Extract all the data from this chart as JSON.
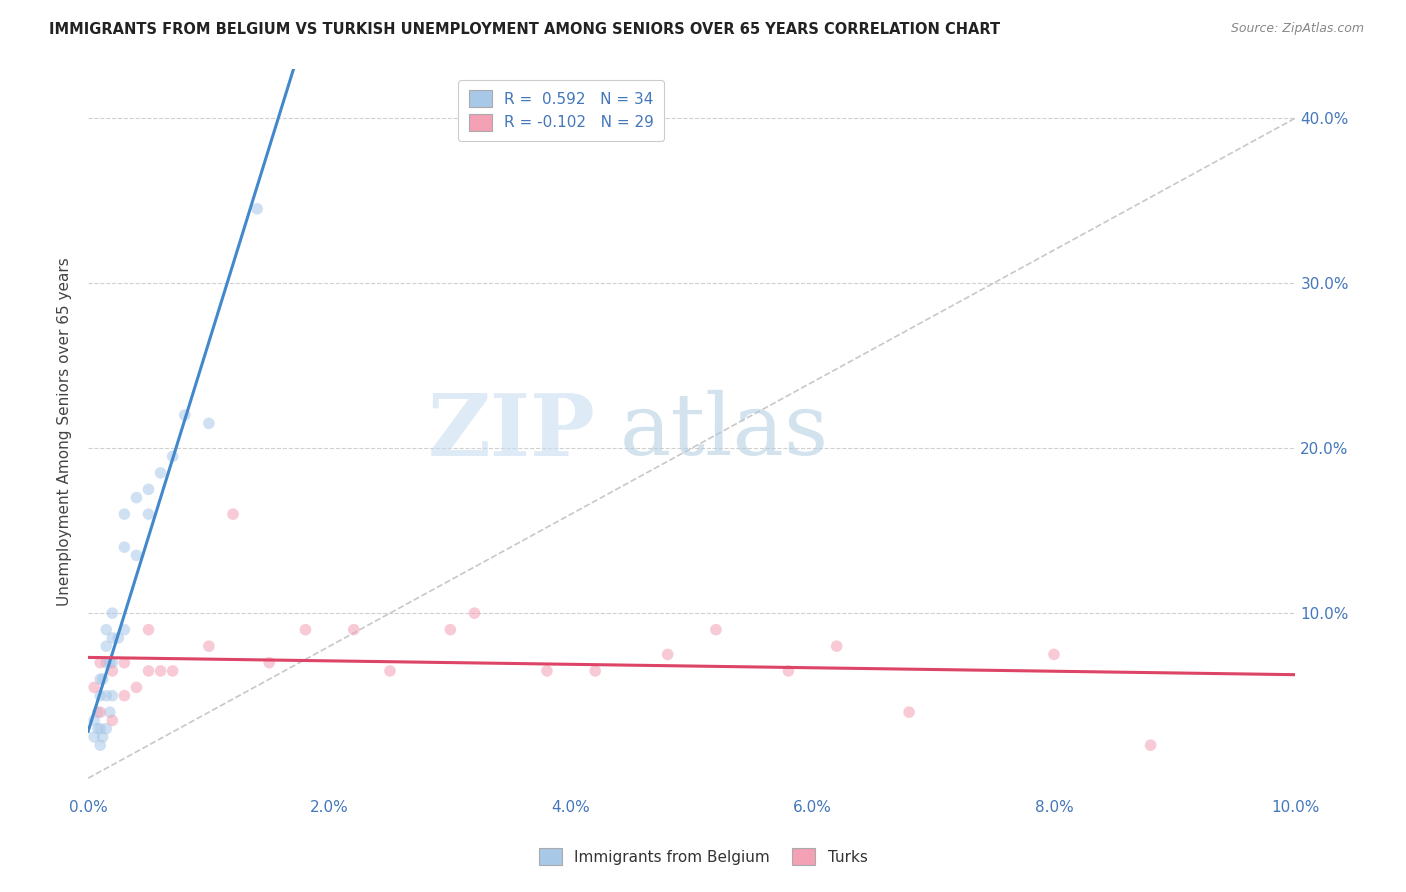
{
  "title": "IMMIGRANTS FROM BELGIUM VS TURKISH UNEMPLOYMENT AMONG SENIORS OVER 65 YEARS CORRELATION CHART",
  "source": "Source: ZipAtlas.com",
  "ylabel": "Unemployment Among Seniors over 65 years",
  "yticks_right": [
    "",
    "10.0%",
    "20.0%",
    "30.0%",
    "40.0%"
  ],
  "ytick_vals": [
    0,
    0.1,
    0.2,
    0.3,
    0.4
  ],
  "xlim": [
    0,
    0.1
  ],
  "ylim": [
    -0.01,
    0.43
  ],
  "legend1_r": "0.592",
  "legend1_n": "34",
  "legend2_r": "-0.102",
  "legend2_n": "29",
  "blue_color": "#a8c8e8",
  "pink_color": "#f4a0b5",
  "blue_line_color": "#4488cc",
  "pink_line_color": "#dd4466",
  "diagonal_color": "#c8c8c8",
  "belgium_x": [
    0.0005,
    0.0005,
    0.0008,
    0.0008,
    0.001,
    0.001,
    0.001,
    0.001,
    0.0012,
    0.0012,
    0.0015,
    0.0015,
    0.0015,
    0.0015,
    0.0015,
    0.0018,
    0.0018,
    0.002,
    0.002,
    0.002,
    0.002,
    0.0025,
    0.003,
    0.003,
    0.003,
    0.004,
    0.004,
    0.005,
    0.005,
    0.006,
    0.007,
    0.008,
    0.01,
    0.014
  ],
  "belgium_y": [
    0.025,
    0.035,
    0.03,
    0.04,
    0.02,
    0.03,
    0.05,
    0.06,
    0.025,
    0.06,
    0.03,
    0.05,
    0.07,
    0.08,
    0.09,
    0.04,
    0.07,
    0.05,
    0.07,
    0.085,
    0.1,
    0.085,
    0.09,
    0.14,
    0.16,
    0.135,
    0.17,
    0.16,
    0.175,
    0.185,
    0.195,
    0.22,
    0.215,
    0.345
  ],
  "turks_x": [
    0.0005,
    0.001,
    0.001,
    0.002,
    0.002,
    0.003,
    0.003,
    0.004,
    0.005,
    0.005,
    0.006,
    0.007,
    0.01,
    0.012,
    0.015,
    0.018,
    0.022,
    0.025,
    0.03,
    0.032,
    0.038,
    0.042,
    0.048,
    0.052,
    0.058,
    0.062,
    0.068,
    0.08,
    0.088
  ],
  "turks_y": [
    0.055,
    0.04,
    0.07,
    0.035,
    0.065,
    0.05,
    0.07,
    0.055,
    0.065,
    0.09,
    0.065,
    0.065,
    0.08,
    0.16,
    0.07,
    0.09,
    0.09,
    0.065,
    0.09,
    0.1,
    0.065,
    0.065,
    0.075,
    0.09,
    0.065,
    0.08,
    0.04,
    0.075,
    0.02
  ],
  "watermark_zip": "ZIP",
  "watermark_atlas": "atlas",
  "marker_size": 70,
  "alpha": 0.55
}
